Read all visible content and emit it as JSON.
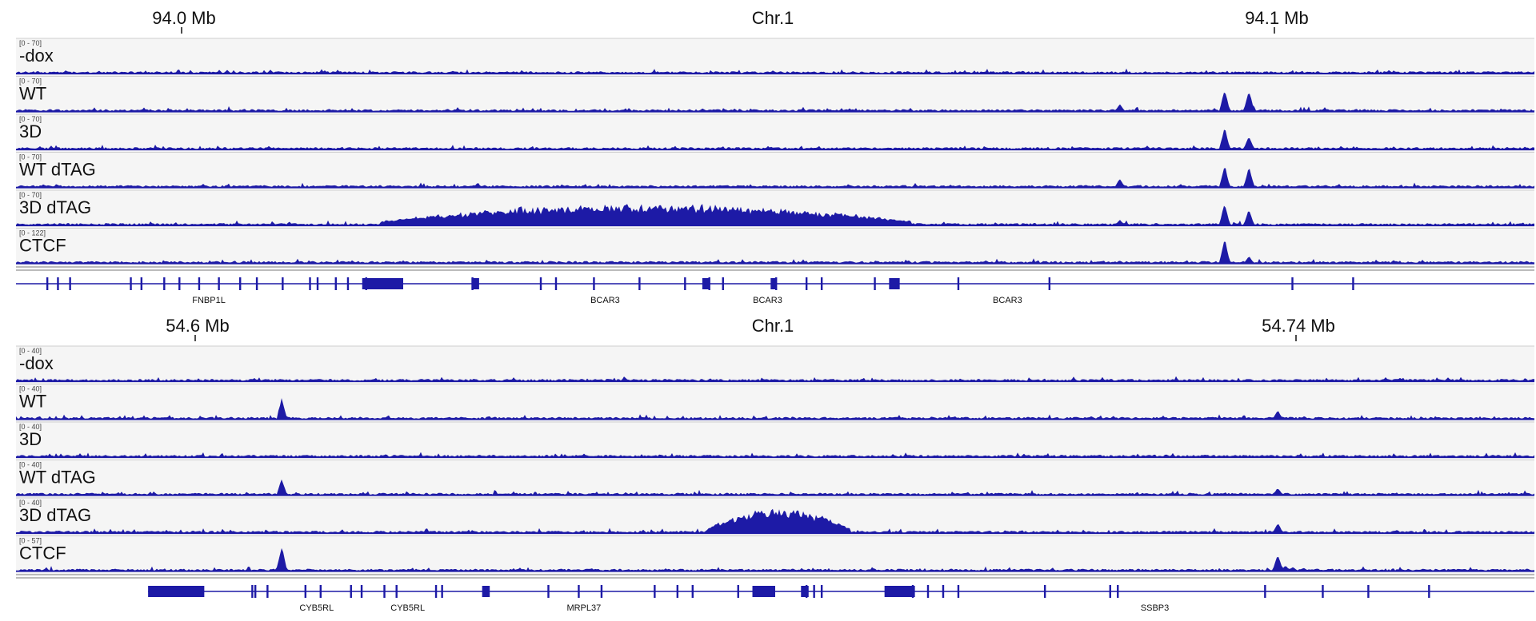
{
  "panels": [
    {
      "ruler": {
        "left_label": "94.0 Mb",
        "center_label": "Chr.1",
        "right_label": "94.1 Mb"
      },
      "tracks": [
        {
          "name": "-dox",
          "range": "[0 - 70]",
          "max": 70,
          "peaks": [],
          "broad": null
        },
        {
          "name": "WT",
          "range": "[0 - 70]",
          "max": 70,
          "peaks": [
            {
              "pos": 0.727,
              "h": 10
            },
            {
              "pos": 0.796,
              "h": 30
            },
            {
              "pos": 0.812,
              "h": 28
            }
          ],
          "broad": null
        },
        {
          "name": "3D",
          "range": "[0 - 70]",
          "max": 70,
          "peaks": [
            {
              "pos": 0.796,
              "h": 30
            },
            {
              "pos": 0.812,
              "h": 18
            }
          ],
          "broad": null
        },
        {
          "name": "WT dTAG",
          "range": "[0 - 70]",
          "max": 70,
          "peaks": [
            {
              "pos": 0.727,
              "h": 12
            },
            {
              "pos": 0.796,
              "h": 30
            },
            {
              "pos": 0.812,
              "h": 28
            }
          ],
          "broad": null
        },
        {
          "name": "3D dTAG",
          "range": "[0 - 70]",
          "max": 70,
          "peaks": [
            {
              "pos": 0.727,
              "h": 8
            },
            {
              "pos": 0.796,
              "h": 30
            },
            {
              "pos": 0.812,
              "h": 22
            }
          ],
          "broad": {
            "start": 0.24,
            "end": 0.59,
            "h": 22
          }
        },
        {
          "name": "CTCF",
          "range": "[0 - 122]",
          "max": 122,
          "peaks": [
            {
              "pos": 0.727,
              "h": 4
            },
            {
              "pos": 0.796,
              "h": 33
            },
            {
              "pos": 0.812,
              "h": 10
            }
          ],
          "broad": null
        }
      ],
      "genes": [
        {
          "name": "FNBP1L",
          "label_pos": 0.127
        },
        {
          "name": "BCAR3",
          "label_pos": 0.388
        },
        {
          "name": "BCAR3",
          "label_pos": 0.495
        },
        {
          "name": "BCAR3",
          "label_pos": 0.653
        }
      ],
      "gene_line": {
        "start": 0.0,
        "end": 1.0
      },
      "exons": [
        0.02,
        0.027,
        0.035,
        0.075,
        0.082,
        0.097,
        0.107,
        0.12,
        0.133,
        0.147,
        0.158,
        0.175,
        0.193,
        0.198,
        0.21,
        0.218,
        0.23,
        0.3,
        0.345,
        0.355,
        0.38,
        0.41,
        0.44,
        0.456,
        0.465,
        0.5,
        0.52,
        0.53,
        0.565,
        0.62,
        0.68,
        0.84,
        0.88
      ],
      "thick_exons": [
        {
          "start": 0.228,
          "end": 0.255
        },
        {
          "start": 0.3,
          "end": 0.305
        },
        {
          "start": 0.452,
          "end": 0.457
        },
        {
          "start": 0.497,
          "end": 0.5
        },
        {
          "start": 0.575,
          "end": 0.582
        }
      ]
    },
    {
      "ruler": {
        "left_label": "54.6 Mb",
        "center_label": "Chr.1",
        "right_label": "54.74 Mb"
      },
      "tracks": [
        {
          "name": "-dox",
          "range": "[0 - 40]",
          "max": 40,
          "peaks": [],
          "broad": null
        },
        {
          "name": "WT",
          "range": "[0 - 40]",
          "max": 40,
          "peaks": [
            {
              "pos": 0.175,
              "h": 28
            },
            {
              "pos": 0.831,
              "h": 12
            }
          ],
          "broad": null
        },
        {
          "name": "3D",
          "range": "[0 - 40]",
          "max": 40,
          "peaks": [],
          "broad": null
        },
        {
          "name": "WT dTAG",
          "range": "[0 - 40]",
          "max": 40,
          "peaks": [
            {
              "pos": 0.175,
              "h": 22
            },
            {
              "pos": 0.831,
              "h": 10
            }
          ],
          "broad": null
        },
        {
          "name": "3D dTAG",
          "range": "[0 - 40]",
          "max": 40,
          "peaks": [
            {
              "pos": 0.831,
              "h": 14
            }
          ],
          "broad": {
            "start": 0.455,
            "end": 0.55,
            "h": 26
          }
        },
        {
          "name": "CTCF",
          "range": "[0 - 57]",
          "max": 57,
          "peaks": [
            {
              "pos": 0.175,
              "h": 33
            },
            {
              "pos": 0.831,
              "h": 22
            },
            {
              "pos": 0.836,
              "h": 8
            },
            {
              "pos": 0.841,
              "h": 6
            },
            {
              "pos": 0.848,
              "h": 5
            }
          ],
          "broad": null
        }
      ],
      "genes": [
        {
          "name": "CYB5RL",
          "label_pos": 0.198
        },
        {
          "name": "CYB5RL",
          "label_pos": 0.258
        },
        {
          "name": "MRPL37",
          "label_pos": 0.374
        },
        {
          "name": "SSBP3",
          "label_pos": 0.75
        }
      ],
      "gene_line": {
        "start": 0.087,
        "end": 1.0
      },
      "exons": [
        0.155,
        0.157,
        0.165,
        0.19,
        0.2,
        0.22,
        0.227,
        0.242,
        0.25,
        0.276,
        0.28,
        0.35,
        0.37,
        0.385,
        0.42,
        0.435,
        0.445,
        0.475,
        0.525,
        0.53,
        0.52,
        0.59,
        0.6,
        0.61,
        0.62,
        0.677,
        0.72,
        0.725,
        0.822,
        0.86,
        0.89,
        0.93
      ],
      "thick_exons": [
        {
          "start": 0.087,
          "end": 0.124
        },
        {
          "start": 0.307,
          "end": 0.312
        },
        {
          "start": 0.485,
          "end": 0.5
        },
        {
          "start": 0.517,
          "end": 0.522
        },
        {
          "start": 0.572,
          "end": 0.592
        }
      ]
    }
  ],
  "colors": {
    "signal": "#1d1aa6",
    "track_bg": "#f5f5f5",
    "divider": "#cfcfcf",
    "text": "#111111",
    "range_text": "#444444"
  }
}
